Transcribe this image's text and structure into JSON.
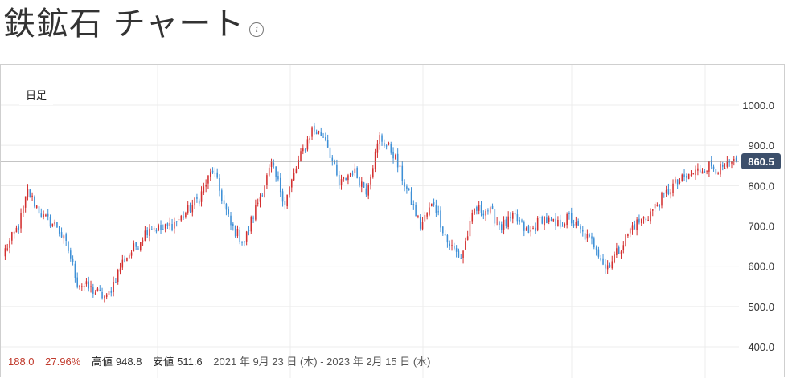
{
  "header": {
    "title": "鉄鉱石 チャート",
    "info_icon": "info-icon"
  },
  "chart_controls": {
    "period": "日足"
  },
  "chart_data": {
    "type": "candlestick",
    "y_ticks": [
      "1000.0",
      "900.0",
      "800.0",
      "700.0",
      "600.0",
      "500.0",
      "400.0"
    ],
    "ylim": [
      380,
      1100
    ],
    "last_price": "860.5",
    "last_value": 860.5,
    "colors": {
      "up": "#d32f2f",
      "down": "#3d8fd6",
      "price_tag": "#3c4f6b",
      "grid": "#ececec",
      "price_line": "#888888"
    },
    "waypoints": [
      [
        0,
        640
      ],
      [
        6,
        700
      ],
      [
        10,
        785
      ],
      [
        17,
        720
      ],
      [
        23,
        700
      ],
      [
        28,
        640
      ],
      [
        32,
        560
      ],
      [
        39,
        540
      ],
      [
        45,
        520
      ],
      [
        52,
        610
      ],
      [
        58,
        650
      ],
      [
        64,
        700
      ],
      [
        70,
        690
      ],
      [
        78,
        720
      ],
      [
        86,
        770
      ],
      [
        92,
        840
      ],
      [
        100,
        700
      ],
      [
        106,
        660
      ],
      [
        112,
        760
      ],
      [
        118,
        850
      ],
      [
        124,
        760
      ],
      [
        130,
        860
      ],
      [
        136,
        940
      ],
      [
        142,
        920
      ],
      [
        148,
        800
      ],
      [
        154,
        840
      ],
      [
        160,
        790
      ],
      [
        166,
        920
      ],
      [
        172,
        880
      ],
      [
        178,
        790
      ],
      [
        184,
        700
      ],
      [
        190,
        760
      ],
      [
        196,
        660
      ],
      [
        202,
        620
      ],
      [
        208,
        740
      ],
      [
        214,
        740
      ],
      [
        220,
        700
      ],
      [
        226,
        720
      ],
      [
        232,
        680
      ],
      [
        238,
        720
      ],
      [
        244,
        700
      ],
      [
        250,
        720
      ],
      [
        256,
        680
      ],
      [
        262,
        650
      ],
      [
        266,
        595
      ],
      [
        272,
        640
      ],
      [
        278,
        700
      ],
      [
        284,
        720
      ],
      [
        290,
        760
      ],
      [
        296,
        800
      ],
      [
        302,
        820
      ],
      [
        308,
        840
      ],
      [
        312,
        850
      ],
      [
        318,
        838
      ],
      [
        324,
        860
      ]
    ]
  },
  "stats": {
    "change": "188.0",
    "change_pct": "27.96%",
    "high_label": "高値",
    "high_value": "948.8",
    "low_label": "安値",
    "low_value": "511.6",
    "range": "2021 年 9月 23 日 (木) - 2023 年 2月 15 日 (水)"
  }
}
